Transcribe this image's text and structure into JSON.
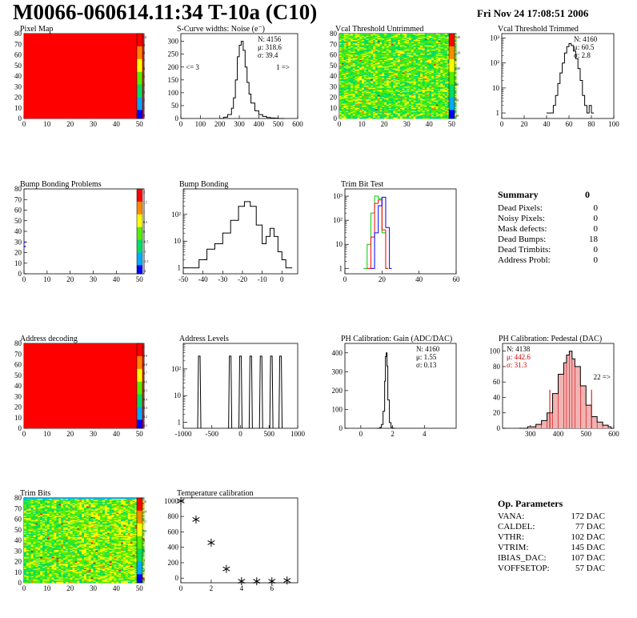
{
  "header": {
    "title": "M0066-060614.11:34 T-10a (C10)",
    "date": "Fri Nov 24 17:08:51 2006"
  },
  "colors": {
    "red_fill": "#ff0000",
    "green_mid": "#33dd33",
    "pedestal_red": "#cc0000",
    "trim_blue": "#0000ff",
    "trim_green": "#00cc00"
  },
  "chart_data": [
    {
      "id": "pixel_map",
      "type": "heatmap",
      "title": "Pixel Map",
      "xlim": [
        0,
        52
      ],
      "ylim": [
        0,
        80
      ],
      "xticks": [
        0,
        10,
        20,
        30,
        40,
        50
      ],
      "yticks": [
        0,
        10,
        20,
        30,
        40,
        50,
        60,
        70,
        80
      ],
      "fill": "uniform red",
      "palette_ticks": [
        "10",
        "9",
        "8",
        "7",
        "6",
        "5",
        "4",
        "3",
        "2",
        "1",
        "0"
      ]
    },
    {
      "id": "scurve",
      "type": "line",
      "title": "S-Curve widths: Noise (e⁻)",
      "xlim": [
        0,
        600
      ],
      "ylim": [
        0,
        330
      ],
      "xticks": [
        0,
        100,
        200,
        300,
        400,
        500,
        600
      ],
      "yticks": [
        0,
        50,
        100,
        150,
        200,
        250,
        300
      ],
      "stats": [
        "N: 4156",
        "μ: 318.6",
        "σ: 39.4"
      ],
      "annotations": [
        "<= 3",
        "1 =>"
      ],
      "x": [
        200,
        220,
        240,
        260,
        270,
        280,
        290,
        300,
        310,
        320,
        330,
        340,
        350,
        360,
        380,
        400,
        420,
        440,
        460,
        480,
        500,
        520
      ],
      "y": [
        0,
        5,
        15,
        40,
        80,
        150,
        240,
        285,
        300,
        265,
        200,
        140,
        95,
        60,
        30,
        15,
        8,
        4,
        2,
        1,
        0,
        0
      ]
    },
    {
      "id": "vcal_untrimmed",
      "type": "heatmap",
      "title": "Vcal Threshold Untrimmed",
      "xlim": [
        0,
        52
      ],
      "ylim": [
        0,
        80
      ],
      "xticks": [
        0,
        10,
        20,
        30,
        40,
        50
      ],
      "yticks": [
        0,
        10,
        20,
        30,
        40,
        50,
        60,
        70,
        80
      ],
      "fill": "noisy green/yellow",
      "palette_ticks": [
        "140",
        "120",
        "100",
        "80",
        "60",
        "40"
      ]
    },
    {
      "id": "vcal_trimmed",
      "type": "line",
      "title": "Vcal Threshold Trimmed",
      "log_y": true,
      "xlim": [
        0,
        100
      ],
      "ylim_log": [
        0.6,
        1500
      ],
      "xticks": [
        0,
        20,
        40,
        60,
        80,
        100
      ],
      "ytick_labels": [
        "1",
        "10",
        "10²",
        "10³"
      ],
      "stats": [
        "N: 4160",
        "μ: 60.5",
        "σ:  2.8"
      ],
      "x": [
        40,
        44,
        46,
        48,
        50,
        52,
        54,
        56,
        58,
        60,
        62,
        64,
        66,
        68,
        70,
        72,
        74,
        76,
        78,
        80
      ],
      "y": [
        1,
        1,
        2,
        5,
        15,
        40,
        100,
        250,
        450,
        600,
        500,
        300,
        150,
        60,
        20,
        5,
        2,
        1,
        2,
        1
      ]
    },
    {
      "id": "bump_problems",
      "type": "heatmap",
      "title": "Bump Bonding Problems",
      "xlim": [
        0,
        52
      ],
      "ylim": [
        0,
        80
      ],
      "xticks": [
        0,
        10,
        20,
        30,
        40,
        50
      ],
      "yticks": [
        0,
        10,
        20,
        30,
        40,
        50,
        60,
        70,
        80
      ],
      "fill": "empty",
      "palette_ticks": [
        "2",
        "1.5",
        "1",
        "0.5",
        "0",
        "-0.5",
        "-1",
        "-1.5",
        "-2"
      ]
    },
    {
      "id": "bump_bonding",
      "type": "line",
      "title": "Bump Bonding",
      "log_y": true,
      "xlim": [
        -50,
        8
      ],
      "ylim_log": [
        0.6,
        900
      ],
      "xticks": [
        -50,
        -40,
        -30,
        -20,
        -10,
        0
      ],
      "ytick_labels": [
        "1",
        "10",
        "10²"
      ],
      "x": [
        -50,
        -46,
        -42,
        -38,
        -34,
        -30,
        -26,
        -22,
        -19,
        -16,
        -13,
        -10,
        -8,
        -6,
        -4,
        -2,
        0,
        2,
        4
      ],
      "y": [
        1,
        1,
        2,
        5,
        8,
        20,
        60,
        200,
        300,
        200,
        40,
        8,
        15,
        30,
        15,
        4,
        2,
        1,
        1
      ]
    },
    {
      "id": "trim_bit",
      "type": "line",
      "title": "Trim Bit Test",
      "log_y": true,
      "xlim": [
        0,
        60
      ],
      "ylim_log": [
        0.6,
        2000
      ],
      "xticks": [
        0,
        20,
        40,
        60
      ],
      "ytick_labels": [
        "1",
        "10",
        "10²",
        "10³"
      ],
      "series": [
        {
          "color": "#00cc00",
          "x": [
            10,
            12,
            14,
            16,
            18,
            20,
            22
          ],
          "y": [
            1,
            10,
            200,
            1000,
            800,
            30,
            1
          ]
        },
        {
          "color": "#ff0000",
          "x": [
            12,
            14,
            16,
            18,
            20,
            22
          ],
          "y": [
            1,
            20,
            500,
            700,
            40,
            1
          ]
        },
        {
          "color": "#0000ff",
          "x": [
            14,
            16,
            18,
            20,
            22,
            24
          ],
          "y": [
            1,
            30,
            400,
            900,
            50,
            1
          ]
        }
      ]
    },
    {
      "id": "address_decoding",
      "type": "heatmap",
      "title": "Address decoding",
      "xlim": [
        0,
        52
      ],
      "ylim": [
        0,
        80
      ],
      "xticks": [
        0,
        10,
        20,
        30,
        40,
        50
      ],
      "yticks": [
        0,
        10,
        20,
        30,
        40,
        50,
        60,
        70,
        80
      ],
      "fill": "uniform red",
      "palette_ticks": [
        "1",
        "0.9",
        "0.8",
        "0.7",
        "0.6",
        "0.5",
        "0.4",
        "0.3",
        "0.2",
        "0.1"
      ]
    },
    {
      "id": "address_levels",
      "type": "bar",
      "title": "Address Levels",
      "log_y": true,
      "xlim": [
        -1000,
        1000
      ],
      "ylim_log": [
        0.6,
        900
      ],
      "xticks": [
        -1000,
        -500,
        0,
        500,
        1000
      ],
      "ytick_labels": [
        "1",
        "10",
        "10²"
      ],
      "peaks_x": [
        -720,
        -180,
        0,
        180,
        360,
        540,
        700
      ],
      "peaks_y": [
        300,
        300,
        300,
        300,
        300,
        300,
        300
      ]
    },
    {
      "id": "ph_gain",
      "type": "line",
      "title": "PH Calibration: Gain (ADC/DAC)",
      "xlim": [
        -1,
        6
      ],
      "ylim": [
        0,
        450
      ],
      "xticks": [
        0,
        2,
        4
      ],
      "yticks": [
        0,
        100,
        200,
        300,
        400
      ],
      "stats": [
        "N: 4160",
        "μ: 1.55",
        "σ: 0.13"
      ],
      "x": [
        1.0,
        1.2,
        1.3,
        1.4,
        1.5,
        1.55,
        1.6,
        1.65,
        1.7,
        1.8,
        1.9,
        2.0
      ],
      "y": [
        0,
        5,
        20,
        90,
        250,
        380,
        400,
        330,
        150,
        30,
        5,
        0
      ]
    },
    {
      "id": "ph_pedestal",
      "type": "area",
      "title": "PH Calibration: Pedestal (DAC)",
      "xlim": [
        200,
        600
      ],
      "ylim": [
        0,
        110
      ],
      "xticks": [
        300,
        400,
        500,
        600
      ],
      "yticks": [
        0,
        20,
        40,
        60,
        80,
        100
      ],
      "stats_black": [
        "N: 4138"
      ],
      "stats_red": [
        "μ: 442.6",
        "σ: 31.3"
      ],
      "annotation": "22 =>",
      "cut_lines_x": [
        370,
        520
      ],
      "x": [
        260,
        290,
        320,
        340,
        360,
        380,
        400,
        420,
        430,
        440,
        450,
        460,
        480,
        500,
        520,
        540,
        560,
        580,
        590
      ],
      "y": [
        0,
        2,
        5,
        10,
        20,
        45,
        70,
        85,
        95,
        100,
        90,
        80,
        55,
        30,
        15,
        8,
        4,
        2,
        0
      ]
    },
    {
      "id": "trim_bits",
      "type": "heatmap",
      "title": "Trim Bits",
      "xlim": [
        0,
        52
      ],
      "ylim": [
        0,
        80
      ],
      "xticks": [
        0,
        10,
        20,
        30,
        40,
        50
      ],
      "yticks": [
        0,
        10,
        20,
        30,
        40,
        50,
        60,
        70,
        80
      ],
      "fill": "noisy green/yellow",
      "palette_ticks": [
        "16",
        "14",
        "12",
        "10",
        "8",
        "6",
        "4",
        "2",
        "0"
      ]
    },
    {
      "id": "temp_calib",
      "type": "scatter",
      "title": "Temperature calibration",
      "xlim": [
        0,
        7.7
      ],
      "ylim": [
        -60,
        1040
      ],
      "xticks": [
        0,
        2,
        4,
        6
      ],
      "yticks": [
        0,
        200,
        400,
        600,
        800,
        1000
      ],
      "x": [
        0,
        1,
        2,
        3,
        4,
        5,
        6,
        7
      ],
      "y": [
        1000,
        760,
        460,
        120,
        -40,
        -40,
        -40,
        -30
      ]
    }
  ],
  "summary": {
    "title": "Summary",
    "total": "0",
    "rows": [
      {
        "label": "Dead Pixels:",
        "value": "0"
      },
      {
        "label": "Noisy Pixels:",
        "value": "0"
      },
      {
        "label": "Mask defects:",
        "value": "0"
      },
      {
        "label": "Dead Bumps:",
        "value": "18"
      },
      {
        "label": "Dead Trimbits:",
        "value": "0"
      },
      {
        "label": "Address Probl:",
        "value": "0"
      }
    ]
  },
  "op_params": {
    "title": "Op. Parameters",
    "rows": [
      {
        "label": "VANA:",
        "value": "172 DAC"
      },
      {
        "label": "CALDEL:",
        "value": "77 DAC"
      },
      {
        "label": "VTHR:",
        "value": "102 DAC"
      },
      {
        "label": "VTRIM:",
        "value": "145 DAC"
      },
      {
        "label": "IBIAS_DAC:",
        "value": "107 DAC"
      },
      {
        "label": "VOFFSETOP:",
        "value": "57 DAC"
      }
    ]
  }
}
